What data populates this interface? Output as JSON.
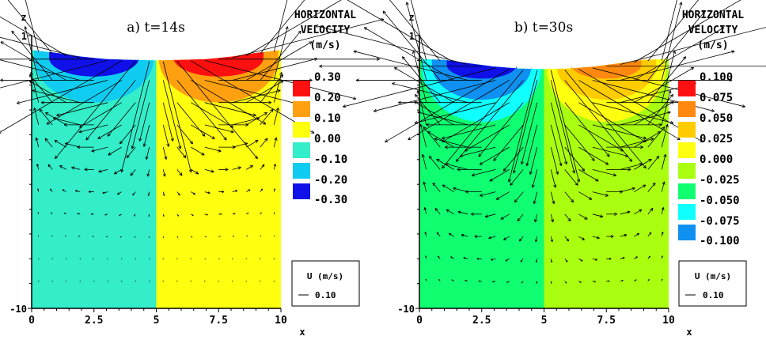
{
  "chart_data": [
    {
      "type": "heatmap",
      "title": "a) t=14s",
      "xlabel": "x",
      "ylabel": "z",
      "xlim": [
        0,
        10
      ],
      "ylim": [
        -10,
        1
      ],
      "x_ticks": [
        "0",
        "2.5",
        "5",
        "7.5",
        "10"
      ],
      "y_ticks": [
        "1",
        "-10"
      ],
      "surface": {
        "x": [
          0,
          1,
          2,
          3,
          4,
          5,
          6,
          7,
          8,
          9,
          10
        ],
        "z": [
          0.42,
          0.3,
          0.15,
          0.05,
          0.02,
          0.0,
          0.02,
          0.05,
          0.15,
          0.3,
          0.42
        ]
      },
      "field_left_value": -0.1,
      "field_right_value": 0.0,
      "blobs": [
        {
          "cx": 2.5,
          "value": -0.2,
          "halfwidth": 2.4,
          "depth": 1.8
        },
        {
          "cx": 2.5,
          "value": -0.3,
          "halfwidth": 1.8,
          "depth": 0.75
        },
        {
          "cx": 7.5,
          "value": 0.1,
          "halfwidth": 2.4,
          "depth": 1.8
        },
        {
          "cx": 7.5,
          "value": 0.2,
          "halfwidth": 1.8,
          "depth": 0.75
        }
      ],
      "vector_amplitude": 0.3,
      "vector_decay": 1.57,
      "legend": {
        "title": [
          "HORIZONTAL",
          "VELOCITY",
          "(m/s)"
        ],
        "levels": [
          {
            "label": "0.30",
            "color": "#ff1010",
            "value": 0.3
          },
          {
            "label": "0.20",
            "color": "#ffa010",
            "value": 0.2
          },
          {
            "label": "0.10",
            "color": "#ffff10",
            "value": 0.1
          },
          {
            "label": "0.00",
            "color": "#33eec8",
            "value": 0.0
          },
          {
            "label": "-0.10",
            "color": "#10ccf0",
            "value": -0.1
          },
          {
            "label": "-0.20",
            "color": "#1010e8",
            "value": -0.2
          },
          {
            "label": "-0.30",
            "color": "#1010e8",
            "value": -0.3
          }
        ],
        "colors": {
          "-0.3": "#1010e8",
          "-0.2": "#10ccf0",
          "-0.1": "#33eec8",
          "0.0": "#ffff10",
          "0.1": "#ffa010",
          "0.2": "#ff1010"
        }
      },
      "reference_vector": {
        "title": "U (m/s)",
        "label": "0.10",
        "value": 0.1
      }
    },
    {
      "type": "heatmap",
      "title": "b) t=30s",
      "xlabel": "x",
      "ylabel": "z",
      "xlim": [
        0,
        10
      ],
      "ylim": [
        -10,
        1
      ],
      "x_ticks": [
        "0",
        "2.5",
        "5",
        "7.5",
        "10"
      ],
      "y_ticks": [
        "1",
        "-10"
      ],
      "surface": {
        "x": [
          0,
          1,
          2,
          3,
          4,
          5,
          6,
          7,
          8,
          9,
          10
        ],
        "z": [
          0.05,
          0.02,
          -0.12,
          -0.25,
          -0.33,
          -0.35,
          -0.33,
          -0.25,
          -0.12,
          0.02,
          0.05
        ]
      },
      "field_left_value": -0.025,
      "field_right_value": 0.0,
      "blobs": [
        {
          "cx": 2.5,
          "value": -0.05,
          "halfwidth": 2.4,
          "depth": 2.3
        },
        {
          "cx": 2.5,
          "value": -0.075,
          "halfwidth": 2.0,
          "depth": 1.4
        },
        {
          "cx": 2.5,
          "value": -0.1,
          "halfwidth": 1.4,
          "depth": 0.55
        },
        {
          "cx": 7.5,
          "value": 0.025,
          "halfwidth": 2.4,
          "depth": 2.3
        },
        {
          "cx": 7.5,
          "value": 0.05,
          "halfwidth": 2.0,
          "depth": 1.4
        },
        {
          "cx": 7.5,
          "value": 0.075,
          "halfwidth": 1.4,
          "depth": 0.55
        }
      ],
      "vector_amplitude": 0.1,
      "vector_decay": 2.2,
      "legend": {
        "title": [
          "HORIZONTAL",
          "VELOCITY",
          "(m/s)"
        ],
        "levels": [
          {
            "label": "0.100",
            "color": "#ff1010",
            "value": 0.1
          },
          {
            "label": "0.075",
            "color": "#ff8810",
            "value": 0.075
          },
          {
            "label": "0.050",
            "color": "#ffcc00",
            "value": 0.05
          },
          {
            "label": "0.025",
            "color": "#ffff10",
            "value": 0.025
          },
          {
            "label": "0.000",
            "color": "#aaff10",
            "value": 0.0
          },
          {
            "label": "-0.025",
            "color": "#10ff70",
            "value": -0.025
          },
          {
            "label": "-0.050",
            "color": "#10ffff",
            "value": -0.05
          },
          {
            "label": "-0.075",
            "color": "#1090f0",
            "value": -0.075
          },
          {
            "label": "-0.100",
            "color": "#1010e8",
            "value": -0.1
          }
        ],
        "colors": {
          "-0.1": "#1010e8",
          "-0.075": "#1090f0",
          "-0.05": "#10ffff",
          "-0.025": "#10ff70",
          "0.0": "#aaff10",
          "0.025": "#ffff10",
          "0.05": "#ffcc00",
          "0.075": "#ff8810",
          "0.1": "#ff1010"
        }
      },
      "reference_vector": {
        "title": "U (m/s)",
        "label": "0.10",
        "value": 0.1
      }
    }
  ]
}
